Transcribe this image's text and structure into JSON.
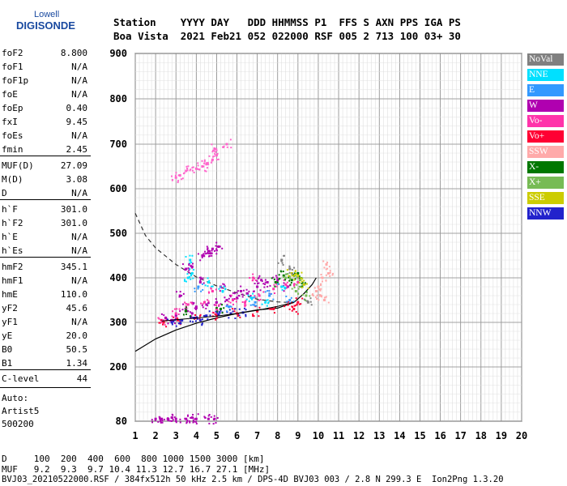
{
  "logo": {
    "top": "Lowell",
    "main": "DIGISONDE"
  },
  "header": {
    "line1": "Station    YYYY DAY   DDD HHMMSS P1  FFS S AXN PPS IGA PS",
    "line2": "Boa Vista  2021 Feb21 052 022000 RSF 005 2 713 100 03+ 30"
  },
  "params": [
    {
      "k": "foF2",
      "v": "8.800"
    },
    {
      "k": "foF1",
      "v": "N/A"
    },
    {
      "k": "foF1p",
      "v": "N/A"
    },
    {
      "k": "foE",
      "v": "N/A"
    },
    {
      "k": "foEp",
      "v": "0.40"
    },
    {
      "k": "fxI",
      "v": "9.45"
    },
    {
      "k": "foEs",
      "v": "N/A"
    },
    {
      "k": "fmin",
      "v": "2.45"
    },
    {
      "k": "MUF(D)",
      "v": "27.09"
    },
    {
      "k": "M(D)",
      "v": "3.08"
    },
    {
      "k": "D",
      "v": "N/A"
    },
    {
      "k": "h`F",
      "v": "301.0"
    },
    {
      "k": "h`F2",
      "v": "301.0"
    },
    {
      "k": "h`E",
      "v": "N/A"
    },
    {
      "k": "h`Es",
      "v": "N/A"
    },
    {
      "k": "hmF2",
      "v": "345.1"
    },
    {
      "k": "hmF1",
      "v": "N/A"
    },
    {
      "k": "hmE",
      "v": "110.0"
    },
    {
      "k": "yF2",
      "v": "45.6"
    },
    {
      "k": "yF1",
      "v": "N/A"
    },
    {
      "k": "yE",
      "v": "20.0"
    },
    {
      "k": "B0",
      "v": "50.5"
    },
    {
      "k": "B1",
      "v": "1.34"
    },
    {
      "k": "C-level",
      "v": "44"
    }
  ],
  "auto": {
    "line1": "Auto:",
    "line2": "Artist5",
    "line3": "500200"
  },
  "footer": {
    "d_row": "D     100  200  400  600  800 1000 1500 3000 [km]",
    "muf_row": "MUF   9.2  9.3  9.7 10.4 11.3 12.7 16.7 27.1 [MHz]",
    "file_row": "BVJ03_20210522000.RSF / 384fx512h 50 kHz 2.5 km / DPS-4D BVJ03 003 / 2.8 N 299.3 E  Ion2Png 1.3.20"
  },
  "legend": [
    {
      "label": "NoVal",
      "color": "#808080"
    },
    {
      "label": "NNE",
      "color": "#00e0ff"
    },
    {
      "label": "E",
      "color": "#3399ff"
    },
    {
      "label": "W",
      "color": "#b000b0"
    },
    {
      "label": "Vo-",
      "color": "#ff33aa"
    },
    {
      "label": "Vo+",
      "color": "#ff0033"
    },
    {
      "label": "SSW",
      "color": "#ffaaaa"
    },
    {
      "label": "X-",
      "color": "#007700"
    },
    {
      "label": "X+",
      "color": "#77bb55"
    },
    {
      "label": "SSE",
      "color": "#cccc00"
    },
    {
      "label": "NNW",
      "color": "#2222cc"
    }
  ],
  "chart_data": {
    "type": "scatter",
    "title": "",
    "xlabel": "",
    "ylabel": "",
    "xlim": [
      1,
      20
    ],
    "ylim": [
      80,
      900
    ],
    "x_ticks": [
      1,
      2,
      3,
      4,
      5,
      6,
      7,
      8,
      9,
      10,
      11,
      12,
      13,
      14,
      15,
      16,
      17,
      18,
      19,
      20
    ],
    "y_ticks": [
      80,
      200,
      300,
      400,
      500,
      600,
      700,
      800,
      900
    ],
    "grid": true,
    "series": [
      {
        "name": "W",
        "color": "#b000b0",
        "points": [
          [
            2.5,
            310
          ],
          [
            3.0,
            315
          ],
          [
            3.5,
            330
          ],
          [
            4.0,
            335
          ],
          [
            4.5,
            340
          ],
          [
            5.0,
            345
          ],
          [
            5.5,
            350
          ],
          [
            6.0,
            355
          ],
          [
            6.5,
            365
          ],
          [
            7.0,
            380
          ],
          [
            7.5,
            390
          ],
          [
            8.0,
            395
          ],
          [
            8.5,
            380
          ],
          [
            3.2,
            360
          ],
          [
            4.2,
            390
          ],
          [
            5.2,
            380
          ],
          [
            6.2,
            370
          ],
          [
            7.2,
            395
          ],
          [
            2.8,
            305
          ],
          [
            3.8,
            320
          ]
        ]
      },
      {
        "name": "Vo-",
        "color": "#ff33aa",
        "points": [
          [
            2.3,
            305
          ],
          [
            3.0,
            320
          ],
          [
            3.6,
            340
          ],
          [
            4.4,
            345
          ],
          [
            5.0,
            330
          ],
          [
            5.8,
            350
          ],
          [
            6.4,
            345
          ],
          [
            7.1,
            360
          ],
          [
            7.8,
            375
          ],
          [
            8.4,
            385
          ],
          [
            9.0,
            390
          ],
          [
            4.8,
            370
          ],
          [
            6.8,
            400
          ]
        ]
      },
      {
        "name": "Vo+",
        "color": "#ff0033",
        "points": [
          [
            2.4,
            300
          ],
          [
            3.1,
            305
          ],
          [
            4.0,
            310
          ],
          [
            5.0,
            315
          ],
          [
            6.0,
            320
          ],
          [
            7.0,
            325
          ],
          [
            7.8,
            330
          ],
          [
            8.5,
            340
          ],
          [
            9.0,
            345
          ],
          [
            8.8,
            330
          ]
        ]
      },
      {
        "name": "NNW",
        "color": "#2222cc",
        "points": [
          [
            2.8,
            300
          ],
          [
            3.3,
            305
          ],
          [
            3.9,
            310
          ],
          [
            4.5,
            315
          ],
          [
            5.1,
            318
          ],
          [
            5.7,
            320
          ],
          [
            6.3,
            322
          ],
          [
            4.2,
            305
          ]
        ]
      },
      {
        "name": "NNE",
        "color": "#00e0ff",
        "points": [
          [
            3.6,
            400
          ],
          [
            3.8,
            410
          ],
          [
            4.6,
            390
          ],
          [
            5.3,
            370
          ],
          [
            6.7,
            355
          ],
          [
            7.4,
            345
          ],
          [
            8.2,
            380
          ],
          [
            3.7,
            440
          ]
        ]
      },
      {
        "name": "E",
        "color": "#3399ff",
        "points": [
          [
            4.1,
            380
          ],
          [
            5.6,
            335
          ],
          [
            6.9,
            345
          ],
          [
            7.6,
            360
          ],
          [
            8.6,
            350
          ]
        ]
      },
      {
        "name": "X-",
        "color": "#007700",
        "points": [
          [
            3.5,
            325
          ],
          [
            5.2,
            330
          ],
          [
            7.9,
            390
          ],
          [
            8.7,
            395
          ],
          [
            9.2,
            380
          ],
          [
            8.3,
            405
          ],
          [
            9.0,
            410
          ]
        ]
      },
      {
        "name": "X+",
        "color": "#77bb55",
        "points": [
          [
            8.4,
            400
          ],
          [
            9.1,
            395
          ],
          [
            8.9,
            370
          ],
          [
            9.4,
            360
          ]
        ]
      },
      {
        "name": "SSE",
        "color": "#cccc00",
        "points": [
          [
            9.0,
            405
          ],
          [
            9.3,
            385
          ],
          [
            8.7,
            410
          ]
        ]
      },
      {
        "name": "SSW",
        "color": "#ffaaaa",
        "points": [
          [
            10.0,
            380
          ],
          [
            10.2,
            400
          ],
          [
            10.4,
            430
          ],
          [
            10.1,
            360
          ],
          [
            10.3,
            350
          ],
          [
            10.5,
            410
          ],
          [
            9.9,
            370
          ]
        ]
      },
      {
        "name": "NoVal",
        "color": "#808080",
        "points": [
          [
            8.2,
            440
          ],
          [
            8.6,
            420
          ],
          [
            9.5,
            345
          ]
        ]
      },
      {
        "name": "high-trace",
        "color": "#ff66cc",
        "points": [
          [
            3.0,
            625
          ],
          [
            3.5,
            640
          ],
          [
            4.0,
            645
          ],
          [
            4.5,
            655
          ],
          [
            4.8,
            665
          ],
          [
            5.0,
            675
          ],
          [
            5.5,
            700
          ],
          [
            3.2,
            630
          ],
          [
            4.3,
            650
          ],
          [
            4.9,
            690
          ]
        ]
      },
      {
        "name": "upper-spread",
        "color": "#b000b0",
        "points": [
          [
            4.3,
            450
          ],
          [
            4.6,
            460
          ],
          [
            4.8,
            465
          ],
          [
            5.1,
            470
          ],
          [
            4.7,
            455
          ],
          [
            3.5,
            420
          ],
          [
            3.8,
            425
          ]
        ]
      },
      {
        "name": "low-trace",
        "color": "#b000b0",
        "points": [
          [
            2.0,
            85
          ],
          [
            2.3,
            85
          ],
          [
            2.6,
            85
          ],
          [
            3.0,
            85
          ],
          [
            3.5,
            85
          ],
          [
            4.0,
            85
          ],
          [
            4.6,
            85
          ],
          [
            4.9,
            85
          ],
          [
            2.8,
            88
          ],
          [
            3.8,
            88
          ]
        ]
      }
    ],
    "dashed_curve": [
      [
        1.0,
        545
      ],
      [
        1.5,
        495
      ],
      [
        2.0,
        467
      ],
      [
        3.0,
        430
      ],
      [
        4.0,
        402
      ],
      [
        5.0,
        382
      ],
      [
        6.0,
        366
      ],
      [
        7.0,
        352
      ],
      [
        8.0,
        346
      ],
      [
        8.5,
        345
      ],
      [
        9.0,
        347
      ]
    ],
    "profile_curve": [
      [
        1.0,
        235
      ],
      [
        2.0,
        263
      ],
      [
        3.0,
        283
      ],
      [
        4.0,
        298
      ],
      [
        5.0,
        310
      ],
      [
        6.0,
        320
      ],
      [
        7.0,
        328
      ],
      [
        8.0,
        332
      ],
      [
        8.8,
        345
      ],
      [
        9.3,
        365
      ],
      [
        9.7,
        385
      ],
      [
        9.9,
        400
      ]
    ],
    "solid_trace": [
      [
        2.3,
        303
      ],
      [
        3.0,
        306
      ],
      [
        4.0,
        310
      ],
      [
        5.0,
        314
      ],
      [
        6.0,
        320
      ],
      [
        7.0,
        327
      ],
      [
        8.0,
        336
      ],
      [
        8.8,
        345
      ]
    ]
  }
}
